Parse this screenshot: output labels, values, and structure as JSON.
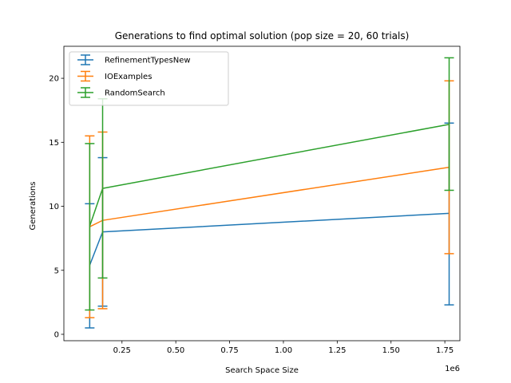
{
  "chart_data": {
    "type": "line",
    "title": "Generations to find optimal solution (pop size = 20, 60 trials)",
    "xlabel": "Search Space Size",
    "ylabel": "Generations",
    "x_offset_label": "1e6",
    "x_multiplier": 1000000,
    "xlim": [
      -0.02,
      1.82
    ],
    "ylim": [
      -0.5,
      22.5
    ],
    "xticks": [
      0.25,
      0.5,
      0.75,
      1.0,
      1.25,
      1.5,
      1.75
    ],
    "xtick_labels": [
      "0.25",
      "0.50",
      "0.75",
      "1.00",
      "1.25",
      "1.50",
      "1.75"
    ],
    "yticks": [
      0,
      5,
      10,
      15,
      20
    ],
    "ytick_labels": [
      "0",
      "5",
      "10",
      "15",
      "20"
    ],
    "grid": false,
    "legend_position": "top-left",
    "error_bars": true,
    "series": [
      {
        "name": "RefinementTypesNew",
        "color": "#1f77b4",
        "x": [
          0.1,
          0.16,
          1.77
        ],
        "y": [
          5.4,
          8.0,
          9.45
        ],
        "yerr_low": [
          0.5,
          2.2,
          2.3
        ],
        "yerr_high": [
          10.2,
          13.8,
          16.5
        ]
      },
      {
        "name": "IOExamples",
        "color": "#ff7f0e",
        "x": [
          0.1,
          0.16,
          1.77
        ],
        "y": [
          8.4,
          8.9,
          13.05
        ],
        "yerr_low": [
          1.3,
          2.0,
          6.3
        ],
        "yerr_high": [
          15.5,
          15.8,
          19.8
        ]
      },
      {
        "name": "RandomSearch",
        "color": "#2ca02c",
        "x": [
          0.1,
          0.16,
          1.77
        ],
        "y": [
          8.45,
          11.4,
          16.4
        ],
        "yerr_low": [
          1.9,
          4.4,
          11.25
        ],
        "yerr_high": [
          14.9,
          18.4,
          21.6
        ]
      }
    ]
  }
}
